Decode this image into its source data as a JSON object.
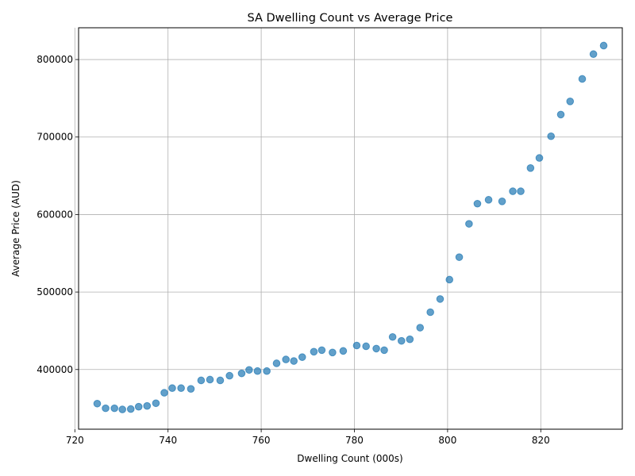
{
  "chart_data": {
    "type": "scatter",
    "title": "SA Dwelling Count vs Average Price",
    "xlabel": "Dwelling Count (000s)",
    "ylabel": "Average Price (AUD)",
    "xlim": [
      720.8,
      837.5
    ],
    "ylim": [
      323000,
      841000
    ],
    "xticks": [
      720,
      740,
      760,
      780,
      800,
      820
    ],
    "yticks": [
      400000,
      500000,
      600000,
      700000,
      800000
    ],
    "grid": true,
    "marker_color": "#1f77b4",
    "marker_alpha": 0.7,
    "x": [
      724.8,
      726.6,
      728.5,
      730.2,
      732.0,
      733.7,
      735.5,
      737.4,
      739.2,
      740.9,
      742.8,
      744.9,
      747.1,
      749.0,
      751.2,
      753.2,
      755.8,
      757.4,
      759.2,
      761.2,
      763.3,
      765.3,
      767.0,
      768.8,
      771.3,
      773.0,
      775.3,
      777.6,
      780.5,
      782.5,
      784.7,
      786.4,
      788.2,
      790.1,
      791.9,
      794.1,
      796.3,
      798.4,
      800.4,
      802.5,
      804.6,
      806.4,
      808.8,
      811.7,
      814.0,
      815.7,
      817.8,
      819.7,
      822.2,
      824.3,
      826.3,
      828.9,
      831.3,
      833.5
    ],
    "y": [
      356000,
      350000,
      350000,
      348500,
      349000,
      352000,
      353000,
      356500,
      370000,
      376000,
      376000,
      375000,
      386000,
      387000,
      386000,
      392000,
      395000,
      399500,
      398000,
      398000,
      408000,
      413000,
      411000,
      416000,
      423000,
      425000,
      422000,
      424000,
      431000,
      430000,
      427000,
      425000,
      442000,
      437000,
      439000,
      454000,
      474000,
      491000,
      516000,
      545000,
      588000,
      614000,
      619000,
      617000,
      630000,
      630000,
      660000,
      673000,
      701000,
      729000,
      746000,
      775000,
      807000,
      818000
    ]
  }
}
